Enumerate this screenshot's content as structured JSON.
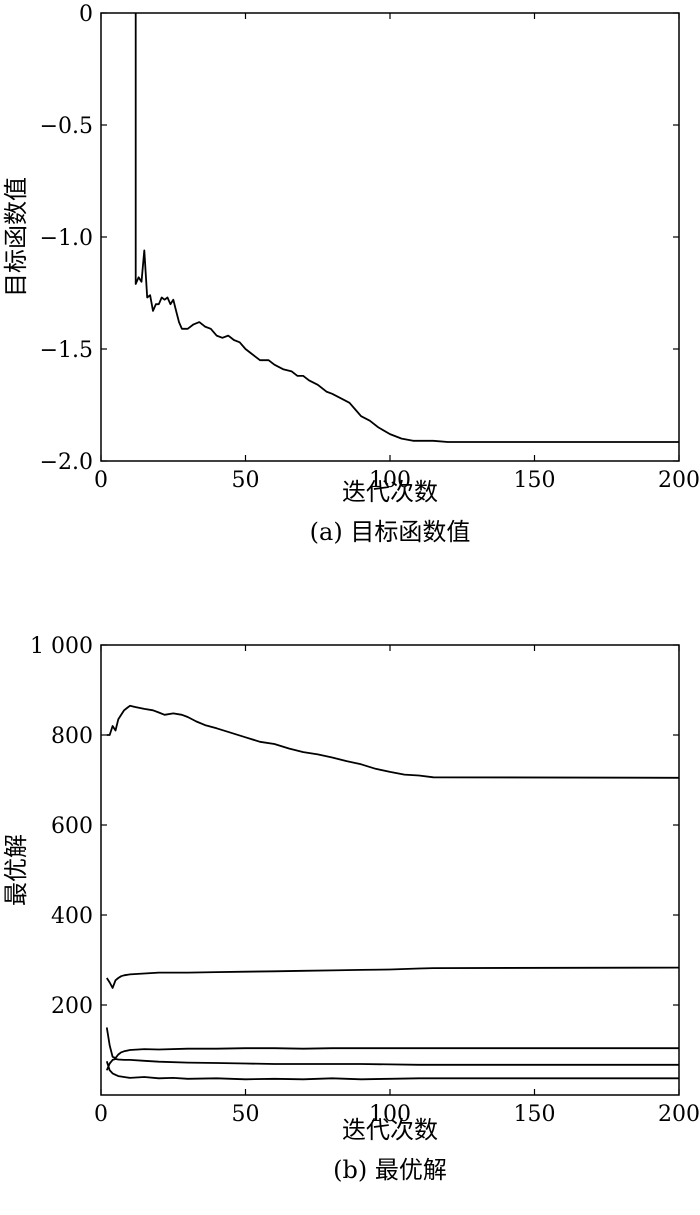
{
  "chart_data": [
    {
      "type": "line",
      "caption": "(a) 目标函数值",
      "xlabel": "迭代次数",
      "ylabel": "目标函数值",
      "xlim": [
        0,
        200
      ],
      "ylim": [
        -2.0,
        0
      ],
      "xticks": [
        0,
        50,
        100,
        150,
        200
      ],
      "xtick_labels": [
        "0",
        "50",
        "100",
        "150",
        "200"
      ],
      "yticks": [
        0,
        -0.5,
        -1.0,
        -1.5,
        -2.0
      ],
      "ytick_labels": [
        "0",
        "−0.5",
        "−1.0",
        "−1.5",
        "−2.0"
      ],
      "grid": false,
      "series": [
        {
          "x": [
            12,
            12,
            13,
            14,
            15,
            16,
            17,
            18,
            19,
            20,
            21,
            22,
            23,
            24,
            25,
            26,
            27,
            28,
            29,
            30,
            32,
            34,
            36,
            38,
            40,
            42,
            44,
            46,
            48,
            50,
            52,
            55,
            58,
            60,
            63,
            66,
            68,
            70,
            72,
            75,
            78,
            80,
            83,
            86,
            88,
            90,
            93,
            96,
            100,
            104,
            108,
            115,
            120,
            200
          ],
          "y": [
            0,
            -1.21,
            -1.18,
            -1.2,
            -1.06,
            -1.27,
            -1.26,
            -1.33,
            -1.3,
            -1.3,
            -1.27,
            -1.28,
            -1.27,
            -1.3,
            -1.28,
            -1.33,
            -1.38,
            -1.41,
            -1.41,
            -1.41,
            -1.39,
            -1.38,
            -1.4,
            -1.41,
            -1.44,
            -1.45,
            -1.44,
            -1.46,
            -1.47,
            -1.5,
            -1.52,
            -1.55,
            -1.55,
            -1.57,
            -1.59,
            -1.6,
            -1.62,
            -1.62,
            -1.64,
            -1.66,
            -1.69,
            -1.7,
            -1.72,
            -1.74,
            -1.77,
            -1.8,
            -1.82,
            -1.85,
            -1.88,
            -1.9,
            -1.91,
            -1.91,
            -1.915,
            -1.915
          ]
        }
      ]
    },
    {
      "type": "line",
      "caption": "(b) 最优解",
      "xlabel": "迭代次数",
      "ylabel": "最优解",
      "xlim": [
        0,
        200
      ],
      "ylim": [
        0,
        1000
      ],
      "xticks": [
        0,
        50,
        100,
        150,
        200
      ],
      "xtick_labels": [
        "0",
        "50",
        "100",
        "150",
        "200"
      ],
      "yticks": [
        200,
        400,
        600,
        800,
        1000
      ],
      "ytick_labels": [
        "200",
        "400",
        "600",
        "800",
        "1 000"
      ],
      "grid": false,
      "series": [
        {
          "x": [
            2,
            3,
            4,
            5,
            6,
            7,
            8,
            9,
            10,
            12,
            15,
            18,
            20,
            22,
            25,
            28,
            30,
            33,
            36,
            40,
            45,
            50,
            55,
            60,
            65,
            70,
            75,
            80,
            85,
            90,
            95,
            100,
            105,
            110,
            115,
            200
          ],
          "y": [
            800,
            800,
            820,
            810,
            835,
            845,
            855,
            860,
            865,
            862,
            858,
            855,
            850,
            845,
            848,
            845,
            840,
            830,
            822,
            815,
            805,
            795,
            785,
            780,
            770,
            762,
            757,
            750,
            742,
            735,
            725,
            718,
            712,
            710,
            706,
            705
          ]
        },
        {
          "x": [
            2,
            3,
            4,
            5,
            6,
            7,
            8,
            10,
            15,
            20,
            30,
            40,
            50,
            60,
            70,
            80,
            90,
            100,
            110,
            115,
            200
          ],
          "y": [
            260,
            250,
            238,
            255,
            260,
            264,
            266,
            268,
            270,
            272,
            272,
            273,
            274,
            275,
            276,
            277,
            278,
            279,
            281,
            282,
            283
          ]
        },
        {
          "x": [
            2,
            3,
            4,
            5,
            6,
            7,
            8,
            10,
            15,
            20,
            30,
            40,
            50,
            60,
            70,
            80,
            90,
            100,
            110,
            115,
            200
          ],
          "y": [
            150,
            110,
            85,
            82,
            90,
            95,
            97,
            100,
            102,
            101,
            103,
            103,
            104,
            104,
            103,
            104,
            104,
            104,
            104,
            104,
            104
          ]
        },
        {
          "x": [
            2,
            3,
            4,
            5,
            6,
            8,
            10,
            15,
            20,
            30,
            40,
            50,
            60,
            70,
            80,
            90,
            100,
            110,
            115,
            200
          ],
          "y": [
            55,
            70,
            78,
            80,
            79,
            78,
            78,
            76,
            74,
            72,
            71,
            70,
            69,
            69,
            69,
            69,
            68,
            67,
            67,
            67
          ]
        },
        {
          "x": [
            2,
            3,
            4,
            5,
            6,
            8,
            10,
            15,
            20,
            25,
            30,
            40,
            50,
            60,
            70,
            80,
            90,
            100,
            110,
            115,
            200
          ],
          "y": [
            75,
            55,
            48,
            45,
            42,
            40,
            38,
            40,
            37,
            38,
            36,
            37,
            35,
            36,
            35,
            37,
            35,
            36,
            37,
            37,
            37
          ]
        }
      ]
    }
  ]
}
